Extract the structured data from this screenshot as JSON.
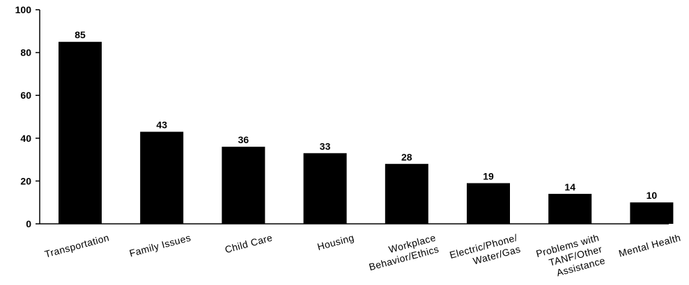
{
  "chart_data": {
    "type": "bar",
    "categories": [
      [
        "Transportation"
      ],
      [
        "Family Issues"
      ],
      [
        "Child Care"
      ],
      [
        "Housing"
      ],
      [
        "Workplace",
        "Behavior/Ethics"
      ],
      [
        "Electric/Phone/",
        "Water/Gas"
      ],
      [
        "Problems with",
        "TANF/Other",
        "Assistance"
      ],
      [
        "Mental Health"
      ]
    ],
    "values": [
      85,
      43,
      36,
      33,
      28,
      19,
      14,
      10
    ],
    "data_labels": [
      "85",
      "43",
      "36",
      "33",
      "28",
      "19",
      "14",
      "10"
    ],
    "ylim": [
      0,
      100
    ],
    "yticks": [
      "0",
      "20",
      "40",
      "60",
      "80",
      "100"
    ],
    "bar_color": "#000000",
    "axis_color": "#000000",
    "grid": false
  }
}
